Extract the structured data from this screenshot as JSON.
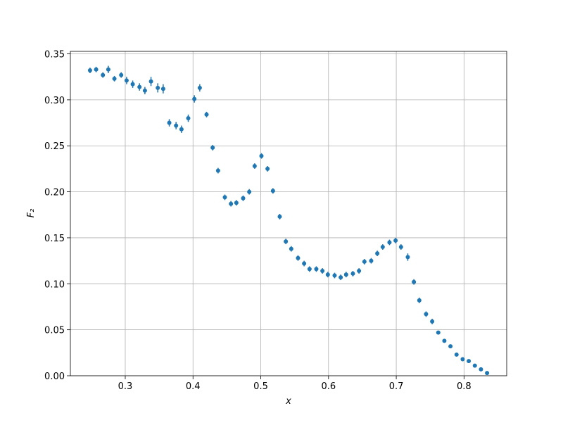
{
  "chart_data": {
    "type": "scatter",
    "xlabel": "x",
    "ylabel": "F₂",
    "color": "#1f77b4",
    "grid": true,
    "xlim": [
      0.219,
      0.863
    ],
    "ylim": [
      0,
      0.3527
    ],
    "xticks": [
      0.3,
      0.4,
      0.5,
      0.6,
      0.7,
      0.8
    ],
    "yticks": [
      {
        "value": 0,
        "label": "0.00"
      },
      {
        "value": 0.05,
        "label": "0.05"
      },
      {
        "value": 0.1,
        "label": "0.10"
      },
      {
        "value": 0.15,
        "label": "0.15"
      },
      {
        "value": 0.2,
        "label": "0.20"
      },
      {
        "value": 0.25,
        "label": "0.25"
      },
      {
        "value": 0.3,
        "label": "0.30"
      },
      {
        "value": 0.35,
        "label": "0.35"
      }
    ],
    "x": [
      0.248,
      0.257,
      0.267,
      0.275,
      0.284,
      0.294,
      0.302,
      0.311,
      0.321,
      0.329,
      0.338,
      0.348,
      0.356,
      0.365,
      0.375,
      0.383,
      0.393,
      0.402,
      0.41,
      0.42,
      0.429,
      0.437,
      0.447,
      0.456,
      0.464,
      0.474,
      0.483,
      0.491,
      0.501,
      0.51,
      0.518,
      0.528,
      0.537,
      0.545,
      0.555,
      0.564,
      0.572,
      0.582,
      0.591,
      0.599,
      0.609,
      0.618,
      0.626,
      0.636,
      0.645,
      0.653,
      0.663,
      0.672,
      0.68,
      0.69,
      0.699,
      0.707,
      0.717,
      0.726,
      0.734,
      0.744,
      0.753,
      0.762,
      0.771,
      0.78,
      0.789,
      0.798,
      0.807,
      0.816,
      0.825,
      0.834
    ],
    "values": [
      0.332,
      0.333,
      0.327,
      0.333,
      0.323,
      0.327,
      0.321,
      0.317,
      0.314,
      0.31,
      0.32,
      0.313,
      0.312,
      0.275,
      0.272,
      0.268,
      0.28,
      0.301,
      0.313,
      0.284,
      0.248,
      0.223,
      0.194,
      0.187,
      0.188,
      0.193,
      0.2,
      0.228,
      0.239,
      0.225,
      0.201,
      0.173,
      0.146,
      0.138,
      0.128,
      0.122,
      0.116,
      0.116,
      0.114,
      0.11,
      0.109,
      0.107,
      0.11,
      0.111,
      0.114,
      0.124,
      0.125,
      0.133,
      0.14,
      0.145,
      0.147,
      0.14,
      0.129,
      0.102,
      0.082,
      0.067,
      0.059,
      0.047,
      0.038,
      0.032,
      0.023,
      0.018,
      0.016,
      0.011,
      0.007,
      0.003
    ],
    "errors": [
      0.003,
      0.003,
      0.003,
      0.004,
      0.003,
      0.003,
      0.004,
      0.004,
      0.004,
      0.004,
      0.005,
      0.005,
      0.005,
      0.004,
      0.004,
      0.004,
      0.004,
      0.004,
      0.004,
      0.003,
      0.003,
      0.003,
      0.003,
      0.003,
      0.003,
      0.003,
      0.003,
      0.003,
      0.003,
      0.003,
      0.003,
      0.003,
      0.003,
      0.003,
      0.003,
      0.003,
      0.003,
      0.003,
      0.003,
      0.003,
      0.003,
      0.003,
      0.003,
      0.003,
      0.003,
      0.003,
      0.003,
      0.003,
      0.003,
      0.003,
      0.003,
      0.003,
      0.004,
      0.003,
      0.003,
      0.003,
      0.003,
      0.002,
      0.002,
      0.002,
      0.002,
      0.002,
      0.002,
      0.002,
      0.002,
      0.002
    ]
  }
}
